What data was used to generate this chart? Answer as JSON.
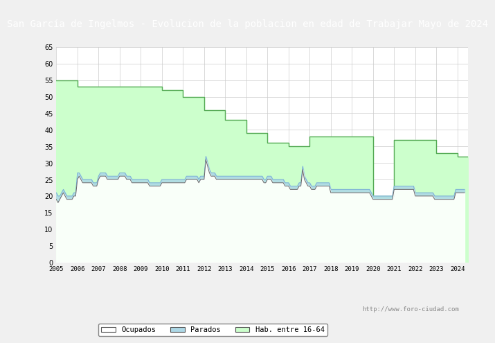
{
  "title": "San García de Ingelmos - Evolucion de la poblacion en edad de Trabajar Mayo de 2024",
  "title_bg": "#4472c4",
  "title_color": "white",
  "title_fontsize": 10,
  "ylim": [
    0,
    65
  ],
  "yticks": [
    0,
    5,
    10,
    15,
    20,
    25,
    30,
    35,
    40,
    45,
    50,
    55,
    60,
    65
  ],
  "watermark": "http://www.foro-ciudad.com",
  "bg_color": "#f0f0f0",
  "plot_bg": "white",
  "grid_color": "#cccccc",
  "hab_step_x": [
    2005.0,
    2006.0,
    2007.0,
    2008.0,
    2009.0,
    2010.0,
    2011.0,
    2012.0,
    2013.0,
    2014.0,
    2015.0,
    2016.0,
    2017.0,
    2018.0,
    2019.0,
    2020.0,
    2021.0,
    2022.0,
    2023.0,
    2024.0,
    2024.5
  ],
  "hab_step_y": [
    55,
    53,
    53,
    53,
    53,
    52,
    50,
    46,
    43,
    39,
    36,
    35,
    38,
    38,
    38,
    20,
    37,
    37,
    33,
    32,
    32
  ],
  "monthly_x": [
    2005.0,
    2005.083,
    2005.167,
    2005.25,
    2005.333,
    2005.417,
    2005.5,
    2005.583,
    2005.667,
    2005.75,
    2005.833,
    2005.917,
    2006.0,
    2006.083,
    2006.167,
    2006.25,
    2006.333,
    2006.417,
    2006.5,
    2006.583,
    2006.667,
    2006.75,
    2006.833,
    2006.917,
    2007.0,
    2007.083,
    2007.167,
    2007.25,
    2007.333,
    2007.417,
    2007.5,
    2007.583,
    2007.667,
    2007.75,
    2007.833,
    2007.917,
    2008.0,
    2008.083,
    2008.167,
    2008.25,
    2008.333,
    2008.417,
    2008.5,
    2008.583,
    2008.667,
    2008.75,
    2008.833,
    2008.917,
    2009.0,
    2009.083,
    2009.167,
    2009.25,
    2009.333,
    2009.417,
    2009.5,
    2009.583,
    2009.667,
    2009.75,
    2009.833,
    2009.917,
    2010.0,
    2010.083,
    2010.167,
    2010.25,
    2010.333,
    2010.417,
    2010.5,
    2010.583,
    2010.667,
    2010.75,
    2010.833,
    2010.917,
    2011.0,
    2011.083,
    2011.167,
    2011.25,
    2011.333,
    2011.417,
    2011.5,
    2011.583,
    2011.667,
    2011.75,
    2011.833,
    2011.917,
    2012.0,
    2012.083,
    2012.167,
    2012.25,
    2012.333,
    2012.417,
    2012.5,
    2012.583,
    2012.667,
    2012.75,
    2012.833,
    2012.917,
    2013.0,
    2013.083,
    2013.167,
    2013.25,
    2013.333,
    2013.417,
    2013.5,
    2013.583,
    2013.667,
    2013.75,
    2013.833,
    2013.917,
    2014.0,
    2014.083,
    2014.167,
    2014.25,
    2014.333,
    2014.417,
    2014.5,
    2014.583,
    2014.667,
    2014.75,
    2014.833,
    2014.917,
    2015.0,
    2015.083,
    2015.167,
    2015.25,
    2015.333,
    2015.417,
    2015.5,
    2015.583,
    2015.667,
    2015.75,
    2015.833,
    2015.917,
    2016.0,
    2016.083,
    2016.167,
    2016.25,
    2016.333,
    2016.417,
    2016.5,
    2016.583,
    2016.667,
    2016.75,
    2016.833,
    2016.917,
    2017.0,
    2017.083,
    2017.167,
    2017.25,
    2017.333,
    2017.417,
    2017.5,
    2017.583,
    2017.667,
    2017.75,
    2017.833,
    2017.917,
    2018.0,
    2018.083,
    2018.167,
    2018.25,
    2018.333,
    2018.417,
    2018.5,
    2018.583,
    2018.667,
    2018.75,
    2018.833,
    2018.917,
    2019.0,
    2019.083,
    2019.167,
    2019.25,
    2019.333,
    2019.417,
    2019.5,
    2019.583,
    2019.667,
    2019.75,
    2019.833,
    2019.917,
    2020.0,
    2020.083,
    2020.167,
    2020.25,
    2020.333,
    2020.417,
    2020.5,
    2020.583,
    2020.667,
    2020.75,
    2020.833,
    2020.917,
    2021.0,
    2021.083,
    2021.167,
    2021.25,
    2021.333,
    2021.417,
    2021.5,
    2021.583,
    2021.667,
    2021.75,
    2021.833,
    2021.917,
    2022.0,
    2022.083,
    2022.167,
    2022.25,
    2022.333,
    2022.417,
    2022.5,
    2022.583,
    2022.667,
    2022.75,
    2022.833,
    2022.917,
    2023.0,
    2023.083,
    2023.167,
    2023.25,
    2023.333,
    2023.417,
    2023.5,
    2023.583,
    2023.667,
    2023.75,
    2023.833,
    2023.917,
    2024.0,
    2024.083,
    2024.167,
    2024.25,
    2024.333,
    2024.417
  ],
  "ocupados_y": [
    19,
    18,
    19,
    20,
    21,
    20,
    19,
    19,
    19,
    19,
    20,
    20,
    25,
    26,
    25,
    24,
    24,
    24,
    24,
    24,
    24,
    23,
    23,
    23,
    25,
    26,
    26,
    26,
    26,
    25,
    25,
    25,
    25,
    25,
    25,
    25,
    26,
    26,
    26,
    26,
    25,
    25,
    25,
    24,
    24,
    24,
    24,
    24,
    24,
    24,
    24,
    24,
    24,
    23,
    23,
    23,
    23,
    23,
    23,
    23,
    24,
    24,
    24,
    24,
    24,
    24,
    24,
    24,
    24,
    24,
    24,
    24,
    24,
    24,
    25,
    25,
    25,
    25,
    25,
    25,
    25,
    24,
    25,
    25,
    25,
    31,
    29,
    27,
    26,
    26,
    26,
    25,
    25,
    25,
    25,
    25,
    25,
    25,
    25,
    25,
    25,
    25,
    25,
    25,
    25,
    25,
    25,
    25,
    25,
    25,
    25,
    25,
    25,
    25,
    25,
    25,
    25,
    25,
    24,
    24,
    25,
    25,
    25,
    24,
    24,
    24,
    24,
    24,
    24,
    24,
    23,
    23,
    23,
    22,
    22,
    22,
    22,
    22,
    23,
    23,
    28,
    25,
    24,
    23,
    23,
    22,
    22,
    22,
    23,
    23,
    23,
    23,
    23,
    23,
    23,
    23,
    21,
    21,
    21,
    21,
    21,
    21,
    21,
    21,
    21,
    21,
    21,
    21,
    21,
    21,
    21,
    21,
    21,
    21,
    21,
    21,
    21,
    21,
    21,
    20,
    19,
    19,
    19,
    19,
    19,
    19,
    19,
    19,
    19,
    19,
    19,
    19,
    22,
    22,
    22,
    22,
    22,
    22,
    22,
    22,
    22,
    22,
    22,
    22,
    20,
    20,
    20,
    20,
    20,
    20,
    20,
    20,
    20,
    20,
    20,
    19,
    19,
    19,
    19,
    19,
    19,
    19,
    19,
    19,
    19,
    19,
    19,
    21,
    21,
    21,
    21,
    21,
    21
  ],
  "parados_y": [
    21,
    20,
    20,
    21,
    22,
    21,
    20,
    20,
    20,
    20,
    21,
    21,
    27,
    27,
    26,
    25,
    25,
    25,
    25,
    25,
    25,
    24,
    24,
    24,
    26,
    27,
    27,
    27,
    27,
    26,
    26,
    26,
    26,
    26,
    26,
    26,
    27,
    27,
    27,
    27,
    26,
    26,
    26,
    25,
    25,
    25,
    25,
    25,
    25,
    25,
    25,
    25,
    25,
    24,
    24,
    24,
    24,
    24,
    24,
    24,
    25,
    25,
    25,
    25,
    25,
    25,
    25,
    25,
    25,
    25,
    25,
    25,
    25,
    25,
    26,
    26,
    26,
    26,
    26,
    26,
    26,
    25,
    26,
    26,
    26,
    32,
    30,
    28,
    27,
    27,
    27,
    26,
    26,
    26,
    26,
    26,
    26,
    26,
    26,
    26,
    26,
    26,
    26,
    26,
    26,
    26,
    26,
    26,
    26,
    26,
    26,
    26,
    26,
    26,
    26,
    26,
    26,
    26,
    25,
    25,
    26,
    26,
    26,
    25,
    25,
    25,
    25,
    25,
    25,
    25,
    24,
    24,
    24,
    23,
    23,
    23,
    23,
    23,
    24,
    24,
    29,
    26,
    25,
    24,
    24,
    23,
    23,
    23,
    24,
    24,
    24,
    24,
    24,
    24,
    24,
    24,
    22,
    22,
    22,
    22,
    22,
    22,
    22,
    22,
    22,
    22,
    22,
    22,
    22,
    22,
    22,
    22,
    22,
    22,
    22,
    22,
    22,
    22,
    22,
    21,
    20,
    20,
    20,
    20,
    20,
    20,
    20,
    20,
    20,
    20,
    20,
    20,
    23,
    23,
    23,
    23,
    23,
    23,
    23,
    23,
    23,
    23,
    23,
    23,
    21,
    21,
    21,
    21,
    21,
    21,
    21,
    21,
    21,
    21,
    21,
    20,
    20,
    20,
    20,
    20,
    20,
    20,
    20,
    20,
    20,
    20,
    20,
    22,
    22,
    22,
    22,
    22,
    22
  ],
  "font_family": "monospace"
}
